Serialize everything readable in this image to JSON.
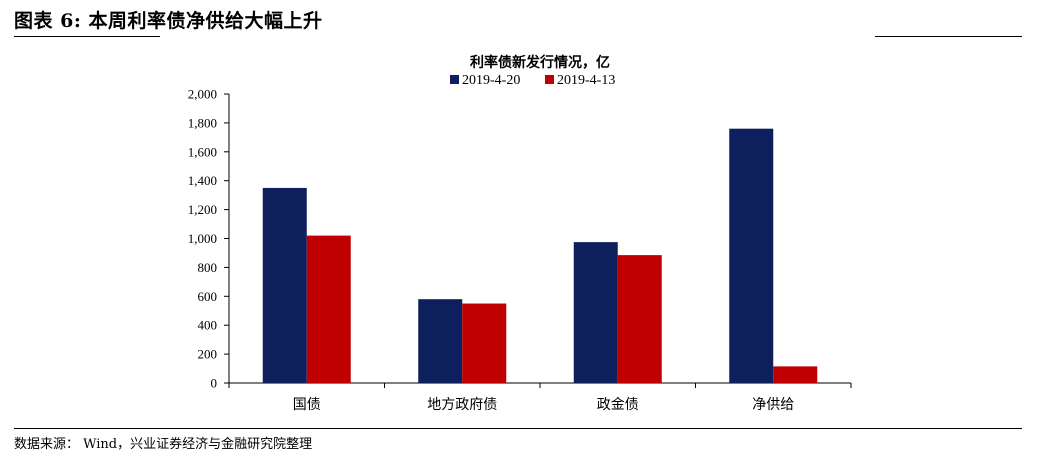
{
  "figure": {
    "title": "图表 6:  本周利率债净供给大幅上升",
    "source": "数据来源：  Wind，兴业证券经济与金融研究院整理"
  },
  "chart_data": {
    "type": "bar",
    "title": "利率债新发行情况，亿",
    "categories": [
      "国债",
      "地方政府债",
      "政金债",
      "净供给"
    ],
    "series": [
      {
        "name": "2019-4-20",
        "color": "#0d1f5c",
        "values": [
          1350,
          580,
          975,
          1760
        ]
      },
      {
        "name": "2019-4-13",
        "color": "#c00000",
        "values": [
          1020,
          550,
          885,
          115
        ]
      }
    ],
    "yticks": [
      "0",
      "200",
      "400",
      "600",
      "800",
      "1,000",
      "1,200",
      "1,400",
      "1,600",
      "1,800",
      "2,000"
    ],
    "ylim": [
      0,
      2000
    ],
    "legend": "top-center",
    "grid": false
  }
}
